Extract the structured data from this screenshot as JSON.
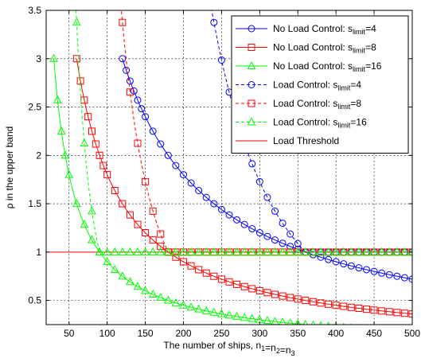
{
  "chart_data": {
    "type": "line",
    "title": "",
    "xlabel_parts": [
      {
        "text": "The number of ships, n",
        "sub": ""
      },
      {
        "text": "",
        "sub": "1"
      },
      {
        "text": "=n",
        "sub": ""
      },
      {
        "text": "",
        "sub": "2"
      },
      {
        "text": "=n",
        "sub": ""
      },
      {
        "text": "",
        "sub": "3"
      }
    ],
    "ylabel": "ρ in the upper band",
    "xlim": [
      20,
      500
    ],
    "ylim": [
      0.25,
      3.5
    ],
    "xticks": [
      50,
      100,
      150,
      200,
      250,
      300,
      350,
      400,
      450,
      500
    ],
    "xtick_labels": [
      "50",
      "100",
      "150",
      "200",
      "250",
      "300",
      "350",
      "400",
      "450",
      "500"
    ],
    "yticks": [
      0.5,
      1,
      1.5,
      2,
      2.5,
      3,
      3.5
    ],
    "ytick_labels": [
      "0.5",
      "1",
      "1.5",
      "2",
      "2.5",
      "3",
      "3.5"
    ],
    "grid": true,
    "legend_position": "top-right",
    "colors": {
      "blue": "#0000ff",
      "red": "#ff0000",
      "green": "#00ff00"
    },
    "series": [
      {
        "name": "No Load Control: s_limit=4",
        "legend": {
          "prefix": "No Load Control: s",
          "sub": "limit",
          "suffix": "=4"
        },
        "color": "#0000ff",
        "marker": "circle",
        "line": "solid",
        "kind": "power",
        "k": 360,
        "x_start": 120,
        "x_end": 500,
        "x_step": 10,
        "dense_until": 150,
        "dense_step": 5
      },
      {
        "name": "No Load Control: s_limit=8",
        "legend": {
          "prefix": "No Load Control: s",
          "sub": "limit",
          "suffix": "=8"
        },
        "color": "#ff0000",
        "marker": "square",
        "line": "solid",
        "kind": "power",
        "k": 180,
        "x_start": 60,
        "x_end": 500,
        "x_step": 10,
        "dense_until": 100,
        "dense_step": 5
      },
      {
        "name": "No Load Control: s_limit=16",
        "legend": {
          "prefix": "No Load Control: s",
          "sub": "limit",
          "suffix": "=16"
        },
        "color": "#00ff00",
        "marker": "triangle",
        "line": "solid",
        "kind": "power",
        "k": 90,
        "x_start": 30,
        "x_end": 500,
        "x_step": 10,
        "dense_until": 50,
        "dense_step": 5
      },
      {
        "name": "Load Control: s_limit=4",
        "legend": {
          "prefix": "Load Control: s",
          "sub": "limit",
          "suffix": "=4"
        },
        "color": "#0000ff",
        "marker": "circle",
        "line": "dashed",
        "kind": "lc",
        "k": 360,
        "x_start": 120,
        "x_end": 500,
        "x_step": 10,
        "dense_until": 150,
        "dense_step": 5
      },
      {
        "name": "Load Control: s_limit=8",
        "legend": {
          "prefix": "Load Control: s",
          "sub": "limit",
          "suffix": "=8"
        },
        "color": "#ff0000",
        "marker": "square",
        "line": "dashed",
        "kind": "lc",
        "k": 180,
        "x_start": 60,
        "x_end": 500,
        "x_step": 10,
        "dense_until": 100,
        "dense_step": 5
      },
      {
        "name": "Load Control: s_limit=16",
        "legend": {
          "prefix": "Load Control: s",
          "sub": "limit",
          "suffix": "=16"
        },
        "color": "#00ff00",
        "marker": "triangle",
        "line": "dashed",
        "kind": "lc",
        "k": 90,
        "x_start": 30,
        "x_end": 500,
        "x_step": 10,
        "dense_until": 50,
        "dense_step": 5
      },
      {
        "name": "Load Threshold",
        "legend": {
          "prefix": "Load Threshold",
          "sub": "",
          "suffix": ""
        },
        "color": "#ff0000",
        "marker": "none",
        "line": "solid",
        "kind": "const",
        "value": 1,
        "x_start": 20,
        "x_end": 500
      }
    ]
  }
}
